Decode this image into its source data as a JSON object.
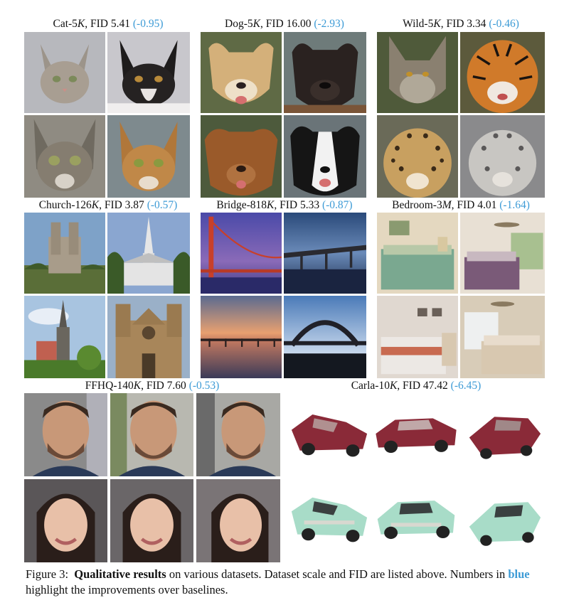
{
  "panels": [
    {
      "id": "cat",
      "prefix": "Cat-5",
      "unit": "K",
      "fid": ", FID 5.41 ",
      "delta": "(-0.95)"
    },
    {
      "id": "dog",
      "prefix": "Dog-5",
      "unit": "K",
      "fid": ", FID 16.00 ",
      "delta": "(-2.93)"
    },
    {
      "id": "wild",
      "prefix": "Wild-5",
      "unit": "K",
      "fid": ", FID 3.34 ",
      "delta": "(-0.46)"
    },
    {
      "id": "church",
      "prefix": "Church-126",
      "unit": "K",
      "fid": ", FID 3.87 ",
      "delta": "(-0.57)"
    },
    {
      "id": "bridge",
      "prefix": "Bridge-818",
      "unit": "K",
      "fid": ", FID 5.33 ",
      "delta": "(-0.87)"
    },
    {
      "id": "bedroom",
      "prefix": "Bedroom-3",
      "unit": "M",
      "fid": ", FID 4.01 ",
      "delta": "(-1.64)"
    },
    {
      "id": "ffhq",
      "prefix": "FFHQ-140",
      "unit": "K",
      "fid": ", FID 7.60 ",
      "delta": "(-0.53)"
    },
    {
      "id": "carla",
      "prefix": "Carla-10",
      "unit": "K",
      "fid": ", FID 47.42 ",
      "delta": "(-6.45)"
    }
  ],
  "caption": {
    "label": "Figure 3:",
    "bold": "Qualitative results",
    "text1": " on various datasets. Dataset scale and FID are listed above. Numbers in ",
    "blue": "blue",
    "text2": " highlight the improvements over baselines."
  },
  "colors": {
    "accent": "#3d9bd6"
  }
}
